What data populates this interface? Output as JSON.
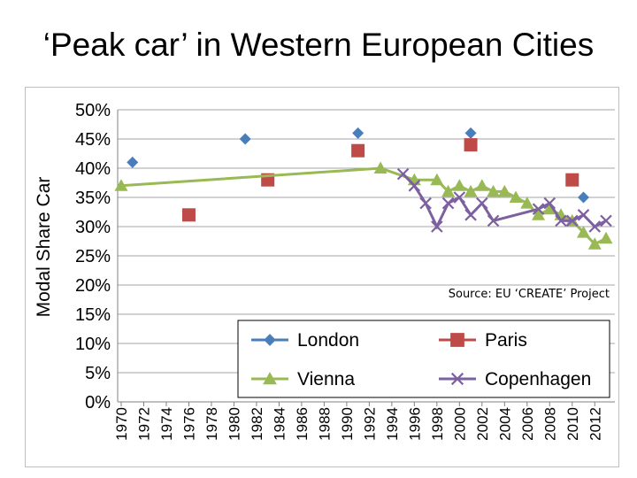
{
  "slide": {
    "title": "‘Peak car’ in Western European Cities"
  },
  "chart_data": {
    "type": "scatter",
    "title": "",
    "xlabel": "",
    "ylabel": "Modal Share Car",
    "ylim": [
      0,
      50
    ],
    "xlim": [
      1970,
      2013
    ],
    "y_ticks": [
      "0%",
      "5%",
      "10%",
      "15%",
      "20%",
      "25%",
      "30%",
      "35%",
      "40%",
      "45%",
      "50%"
    ],
    "x_ticks": [
      "1970",
      "1972",
      "1974",
      "1976",
      "1978",
      "1980",
      "1982",
      "1984",
      "1986",
      "1988",
      "1990",
      "1992",
      "1994",
      "1996",
      "1998",
      "2000",
      "2002",
      "2004",
      "2006",
      "2008",
      "2010",
      "2012"
    ],
    "grid": "horizontal",
    "legend_position": "bottom-right inside plot",
    "annotation": "Source: EU ‘CREATE’ Project",
    "series": [
      {
        "name": "London",
        "marker": "diamond",
        "color": "#4a7ebb",
        "line": false,
        "points": [
          [
            1971,
            41
          ],
          [
            1981,
            45
          ],
          [
            1991,
            46
          ],
          [
            2001,
            46
          ],
          [
            2011,
            35
          ]
        ]
      },
      {
        "name": "Paris",
        "marker": "square",
        "color": "#be4b48",
        "line": false,
        "points": [
          [
            1976,
            32
          ],
          [
            1983,
            38
          ],
          [
            1991,
            43
          ],
          [
            2001,
            44
          ],
          [
            2010,
            38
          ]
        ]
      },
      {
        "name": "Vienna",
        "marker": "triangle",
        "color": "#98b954",
        "line": true,
        "points": [
          [
            1970,
            37
          ],
          [
            1993,
            40
          ],
          [
            1996,
            38
          ],
          [
            1998,
            38
          ],
          [
            1999,
            36
          ],
          [
            2000,
            37
          ],
          [
            2001,
            36
          ],
          [
            2002,
            37
          ],
          [
            2003,
            36
          ],
          [
            2004,
            36
          ],
          [
            2005,
            35
          ],
          [
            2006,
            34
          ],
          [
            2007,
            32
          ],
          [
            2008,
            33
          ],
          [
            2009,
            32
          ],
          [
            2010,
            31
          ],
          [
            2011,
            29
          ],
          [
            2012,
            27
          ],
          [
            2013,
            28
          ]
        ]
      },
      {
        "name": "Copenhagen",
        "marker": "x",
        "color": "#7d60a0",
        "line": true,
        "points": [
          [
            1995,
            39
          ],
          [
            1996,
            37
          ],
          [
            1997,
            34
          ],
          [
            1998,
            30
          ],
          [
            1999,
            34
          ],
          [
            2000,
            35
          ],
          [
            2001,
            32
          ],
          [
            2002,
            34
          ],
          [
            2003,
            31
          ],
          [
            2007,
            33
          ],
          [
            2008,
            34
          ],
          [
            2009,
            31
          ],
          [
            2010,
            31
          ],
          [
            2011,
            32
          ],
          [
            2012,
            30
          ],
          [
            2013,
            31
          ]
        ]
      }
    ]
  }
}
